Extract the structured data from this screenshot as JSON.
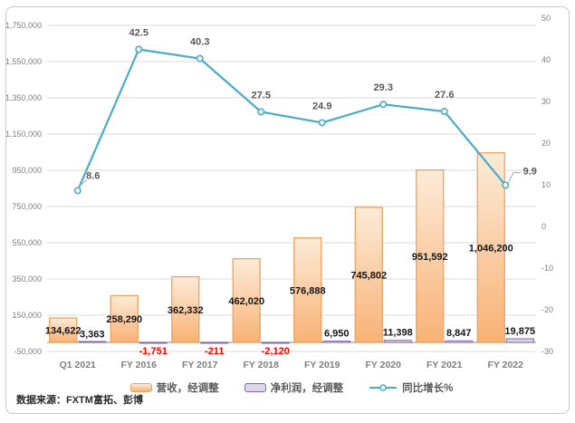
{
  "chart_data": {
    "type": "combo",
    "categories": [
      "Q1 2021",
      "FY 2016",
      "FY 2017",
      "FY 2018",
      "FY 2019",
      "FY 2020",
      "FY 2021",
      "FY 2022"
    ],
    "series": [
      {
        "name": "营收，经调整",
        "type": "bar",
        "axis": "left",
        "values": [
          134622,
          258290,
          362332,
          462020,
          576888,
          745802,
          951592,
          1046200
        ],
        "labels": [
          "134,622",
          "258,290",
          "362,332",
          "462,020",
          "576,888",
          "745,802",
          "951,592",
          "1,046,200"
        ]
      },
      {
        "name": "净利润，经调整",
        "type": "bar",
        "axis": "left",
        "values": [
          3363,
          -1751,
          -211,
          -2120,
          6950,
          11398,
          8847,
          19875
        ],
        "labels": [
          "3,363",
          "-1,751",
          "-211",
          "-2,120",
          "6,950",
          "11,398",
          "8,847",
          "19,875"
        ]
      },
      {
        "name": "同比增长%",
        "type": "line",
        "axis": "right",
        "values": [
          8.6,
          42.5,
          40.3,
          27.5,
          24.9,
          29.3,
          27.6,
          9.9
        ],
        "labels": [
          "8.6",
          "42.5",
          "40.3",
          "27.5",
          "24.9",
          "29.3",
          "27.6",
          "9.9"
        ]
      }
    ],
    "left_axis": {
      "min": -50000,
      "max": 1790000,
      "ticks": [
        1750000,
        1550000,
        1350000,
        1150000,
        950000,
        750000,
        550000,
        350000,
        150000,
        -50000
      ],
      "labels": [
        "1,750,000",
        "1,550,000",
        "1,350,000",
        "1,150,000",
        "950,000",
        "750,000",
        "550,000",
        "350,000",
        "150,000",
        "-50,000"
      ]
    },
    "right_axis": {
      "min": -30,
      "max": 50,
      "ticks": [
        50,
        40,
        30,
        20,
        10,
        0,
        -10,
        -20,
        -30
      ],
      "labels": [
        "50",
        "40",
        "30",
        "20",
        "10",
        "0",
        "-10",
        "-20",
        "-30"
      ]
    },
    "colors": {
      "revenue_fill_top": "#FDEBD8",
      "revenue_fill_bottom": "#F8B275",
      "revenue_border": "#EDA25F",
      "profit_fill": "#DCD6EA",
      "profit_border": "#8269A6",
      "line": "#4BACC6",
      "gridline": "#DBDBDB",
      "axis_line": "#A0A0A0",
      "negative_label": "#FF0000",
      "leader_line": "#A6A6A6"
    },
    "layout": {
      "grid": true,
      "legend_position": "bottom"
    },
    "source": "数据来源：FXTM富拓、彭博"
  }
}
